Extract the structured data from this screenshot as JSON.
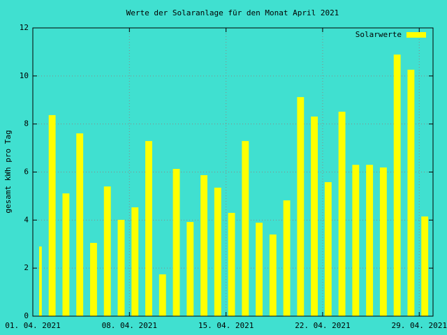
{
  "chart_data": {
    "type": "bar",
    "title": "Werte der Solaranlage für den Monat April 2021",
    "y_label": "gesamt kWh pro Tag",
    "x": [
      "2021-04-01",
      "2021-04-02",
      "2021-04-03",
      "2021-04-04",
      "2021-04-05",
      "2021-04-06",
      "2021-04-07",
      "2021-04-08",
      "2021-04-09",
      "2021-04-10",
      "2021-04-11",
      "2021-04-12",
      "2021-04-13",
      "2021-04-14",
      "2021-04-15",
      "2021-04-16",
      "2021-04-17",
      "2021-04-18",
      "2021-04-19",
      "2021-04-20",
      "2021-04-21",
      "2021-04-22",
      "2021-04-23",
      "2021-04-24",
      "2021-04-25",
      "2021-04-26",
      "2021-04-27",
      "2021-04-28",
      "2021-04-29"
    ],
    "series": [
      {
        "name": "Solarwerte",
        "color": "#ffff00",
        "values": [
          2.9,
          8.37,
          5.11,
          7.61,
          3.05,
          5.4,
          4.01,
          4.53,
          7.29,
          1.74,
          6.13,
          3.92,
          5.87,
          5.35,
          4.3,
          7.29,
          3.89,
          3.4,
          4.82,
          9.12,
          8.31,
          5.58,
          8.51,
          6.3,
          6.3,
          6.19,
          10.89,
          10.26,
          4.15
        ]
      }
    ],
    "xlim": [
      "2021-04-01",
      "2021-04-30"
    ],
    "xticks": [
      {
        "value": "2021-04-01",
        "label": "01. 04. 2021"
      },
      {
        "value": "2021-04-08",
        "label": "08. 04. 2021"
      },
      {
        "value": "2021-04-15",
        "label": "15. 04. 2021"
      },
      {
        "value": "2021-04-22",
        "label": "22. 04. 2021"
      },
      {
        "value": "2021-04-29",
        "label": "29. 04. 2021"
      }
    ],
    "ylim": [
      0,
      12
    ],
    "yticks": [
      0,
      2,
      4,
      6,
      8,
      10,
      12
    ],
    "grid": true,
    "legend_position": "top-right",
    "background": "#40e0d0"
  }
}
